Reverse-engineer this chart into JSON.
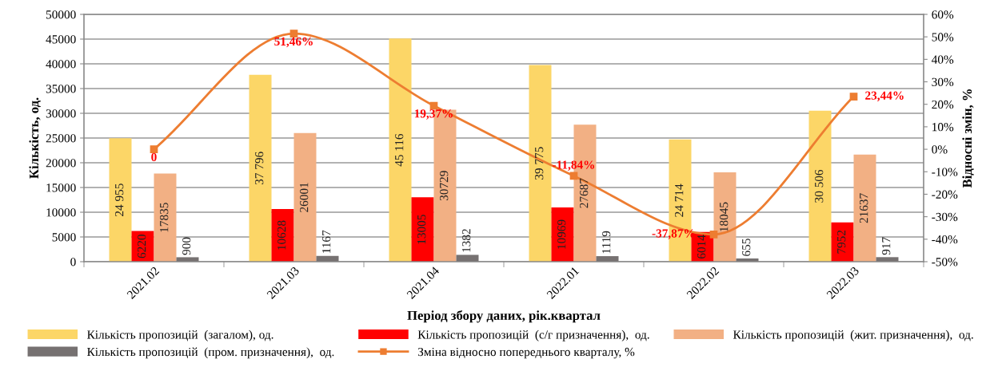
{
  "chart_data": {
    "type": "bar",
    "xlabel": "Період збору даних, рік.квартал",
    "ylabel": "Кількість, од.",
    "y2label": "Відносні змін, %",
    "categories": [
      "2021.02",
      "2021.03",
      "2021.04",
      "2022.01",
      "2022.02",
      "2022.03"
    ],
    "series": [
      {
        "name": "Кількість пропозицій  (загалом), од.",
        "color": "#fcd667",
        "values": [
          24955,
          37796,
          45116,
          39775,
          24714,
          30506
        ],
        "value_labels": [
          "24 955",
          "37 796",
          "45 116",
          "39 775",
          "24 714",
          "30 506"
        ]
      },
      {
        "name": "Кількість пропозицій  (с/г призначення),  од.",
        "color": "#ff0000",
        "values": [
          6220,
          10628,
          13005,
          10969,
          6014,
          7952
        ],
        "value_labels": [
          "6220",
          "10628",
          "13005",
          "10969",
          "6014",
          "7952"
        ]
      },
      {
        "name": "Кількість пропозицій  (жит. призначення),  од.",
        "color": "#f2b084",
        "values": [
          17835,
          26001,
          30729,
          27687,
          18045,
          21637
        ],
        "value_labels": [
          "17835",
          "26001",
          "30729",
          "27687",
          "18045",
          "21637"
        ]
      },
      {
        "name": "Кількість пропозицій  (пром. призначення),  од.",
        "color": "#767171",
        "values": [
          900,
          1167,
          1382,
          1119,
          655,
          917
        ],
        "value_labels": [
          "900",
          "1167",
          "1382",
          "1119",
          "655",
          "917"
        ]
      },
      {
        "name": "Зміна відносно попереднього кварталу, %",
        "type": "line",
        "axis": "y2",
        "color": "#ed7d31",
        "marker": "square",
        "values": [
          0,
          51.46,
          19.37,
          -11.84,
          -37.87,
          23.44
        ],
        "value_labels": [
          "0",
          "51,46%",
          "19,37%",
          "-11,84%",
          "-37,87%",
          "23,44%"
        ]
      }
    ],
    "ylim": [
      0,
      50000
    ],
    "yticks": [
      0,
      5000,
      10000,
      15000,
      20000,
      25000,
      30000,
      35000,
      40000,
      45000,
      50000
    ],
    "y2lim": [
      -50,
      60
    ],
    "y2ticks": [
      {
        "value": -50,
        "label": "-50%"
      },
      {
        "value": -40,
        "label": "-40%"
      },
      {
        "value": -30,
        "label": "-30%"
      },
      {
        "value": -20,
        "label": "-20%"
      },
      {
        "value": -10,
        "label": "-10%"
      },
      {
        "value": 0,
        "label": "0%"
      },
      {
        "value": 10,
        "label": "10%"
      },
      {
        "value": 20,
        "label": "20%"
      },
      {
        "value": 30,
        "label": "30%"
      },
      {
        "value": 40,
        "label": "40%"
      },
      {
        "value": 50,
        "label": "50%"
      },
      {
        "value": 60,
        "label": "60%"
      }
    ],
    "grid": "y",
    "legend": "bottom"
  }
}
